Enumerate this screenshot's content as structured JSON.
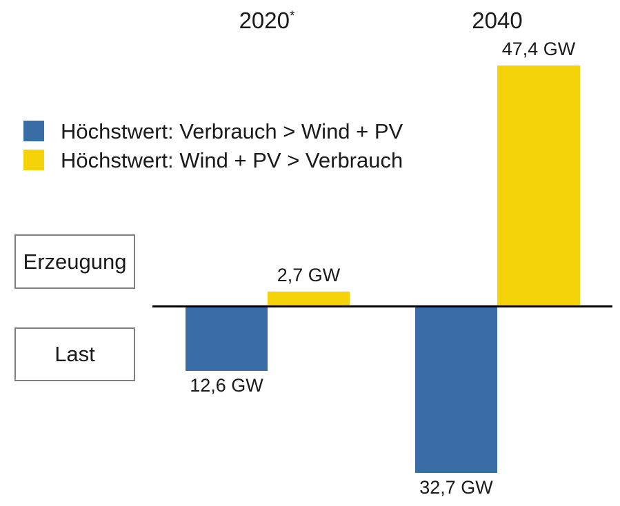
{
  "colors": {
    "deficit_blue": "#3A6CA6",
    "surplus_yellow": "#F5D30A",
    "axis_black": "#000000",
    "box_border_gray": "#7F7F7F",
    "text_dark": "#1A1A1A"
  },
  "legend": {
    "items": [
      {
        "label": "Höchstwert: Verbrauch > Wind + PV",
        "color": "#3A6CA6"
      },
      {
        "label": "Höchstwert: Wind + PV > Verbrauch",
        "color": "#F5D30A"
      }
    ]
  },
  "side_labels": {
    "generation": "Erzeugung",
    "load": "Last"
  },
  "chart_data": {
    "type": "bar",
    "unit": "GW",
    "orientation": "diverging-vertical",
    "zero_axis": true,
    "upper_region_label": "Erzeugung",
    "lower_region_label": "Last",
    "legend_position": "upper-left",
    "groups": [
      {
        "label": "2020",
        "label_suffix": "*",
        "bars": [
          {
            "series": "Höchstwert: Verbrauch > Wind + PV",
            "direction": "down",
            "value": 12.6,
            "value_label": "12,6 GW",
            "color": "#3A6CA6"
          },
          {
            "series": "Höchstwert: Wind + PV > Verbrauch",
            "direction": "up",
            "value": 2.7,
            "value_label": "2,7 GW",
            "color": "#F5D30A"
          }
        ]
      },
      {
        "label": "2040",
        "label_suffix": "",
        "bars": [
          {
            "series": "Höchstwert: Verbrauch > Wind + PV",
            "direction": "down",
            "value": 32.7,
            "value_label": "32,7 GW",
            "color": "#3A6CA6"
          },
          {
            "series": "Höchstwert: Wind + PV > Verbrauch",
            "direction": "up",
            "value": 47.4,
            "value_label": "47,4 GW",
            "color": "#F5D30A"
          }
        ]
      }
    ]
  }
}
